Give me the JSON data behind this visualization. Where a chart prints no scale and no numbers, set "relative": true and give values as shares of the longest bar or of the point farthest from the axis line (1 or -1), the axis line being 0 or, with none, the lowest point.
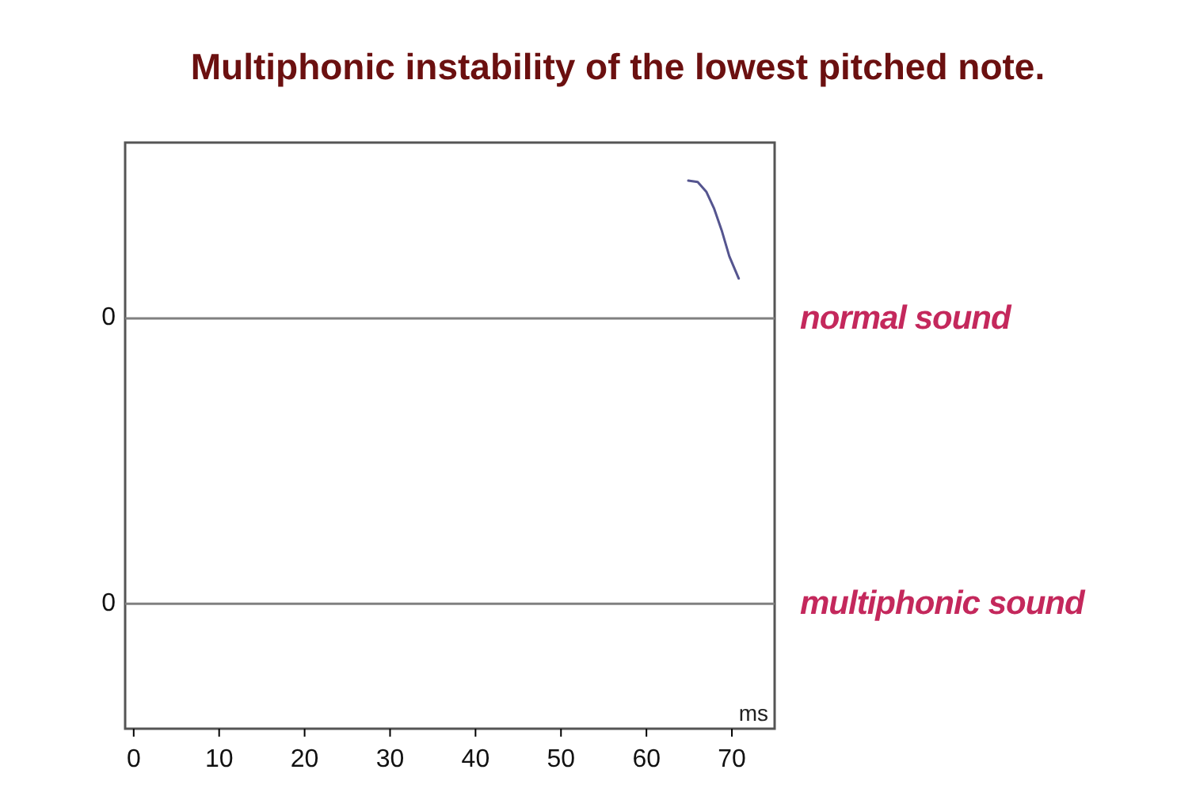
{
  "chart_data": {
    "type": "line",
    "title": "Multiphonic instability of the lowest pitched note.",
    "relative": true,
    "xlim": [
      -1,
      75
    ],
    "xticks": [
      0,
      10,
      20,
      30,
      40,
      50,
      60,
      70
    ],
    "xlabel": "ms",
    "x": [
      64.9,
      66,
      67,
      67.9,
      68.8,
      69.7,
      70.8
    ],
    "series": [
      {
        "color": "#55558f",
        "values": [
          1,
          0.99,
          0.92,
          0.8,
          0.64,
          0.45,
          0.29
        ]
      }
    ],
    "ref_lines": [
      {
        "axis": "y",
        "value": 0,
        "label": "normal sound",
        "color": "#808080"
      },
      {
        "axis": "y",
        "value": -2.07,
        "label": "multiphonic sound",
        "color": "#808080"
      }
    ],
    "annotations": [
      "0",
      "0"
    ]
  }
}
